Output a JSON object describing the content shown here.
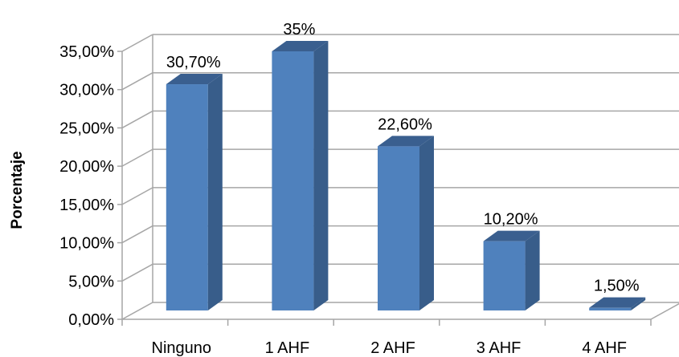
{
  "chart_data": {
    "type": "bar",
    "style": "3d-column",
    "categories": [
      "Ninguno",
      "1 AHF",
      "2 AHF",
      "3 AHF",
      "4 AHF"
    ],
    "values": [
      30.7,
      35,
      22.6,
      10.2,
      1.5
    ],
    "data_labels": [
      "30,70%",
      "35%",
      "22,60%",
      "10,20%",
      "1,50%"
    ],
    "ylabel": "Porcentaje",
    "xlabel": "",
    "title": "",
    "ylim": [
      0,
      35
    ],
    "yticks": [
      0,
      5,
      10,
      15,
      20,
      25,
      30,
      35
    ],
    "ytick_labels": [
      "0,00%",
      "5,00%",
      "10,00%",
      "15,00%",
      "20,00%",
      "25,00%",
      "30,00%",
      "35,00%"
    ],
    "grid": true,
    "legend": "none",
    "colors": {
      "bar_front": "#4F81BD",
      "bar_side": "#385D8A",
      "bar_top": "#3A5F8F",
      "grid": "#A6A6A6"
    }
  }
}
